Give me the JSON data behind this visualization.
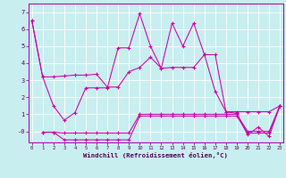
{
  "background_color": "#c8eef0",
  "grid_color": "#ffffff",
  "line_color": "#cc00aa",
  "xlim": [
    -0.3,
    23.3
  ],
  "ylim": [
    -0.65,
    7.5
  ],
  "ytick_vals": [
    0,
    1,
    2,
    3,
    4,
    5,
    6,
    7
  ],
  "ytick_labels": [
    "-0",
    "1",
    "2",
    "3",
    "4",
    "5",
    "6",
    "7"
  ],
  "xtick_vals": [
    0,
    1,
    2,
    3,
    4,
    5,
    6,
    7,
    8,
    9,
    10,
    11,
    12,
    13,
    14,
    15,
    16,
    17,
    18,
    19,
    20,
    21,
    22,
    23
  ],
  "xlabel": "Windchill (Refroidissement éolien,°C)",
  "series": [
    {
      "x": [
        0,
        1,
        2,
        3,
        4,
        5,
        6,
        7,
        8,
        9,
        10,
        11,
        12,
        13,
        14,
        15,
        16,
        17,
        18,
        19,
        20,
        21,
        22,
        23
      ],
      "y": [
        6.5,
        3.2,
        3.2,
        3.25,
        3.3,
        3.3,
        3.35,
        2.6,
        2.6,
        3.5,
        3.75,
        4.35,
        3.7,
        3.75,
        3.75,
        3.75,
        4.5,
        4.5,
        1.15,
        1.15,
        1.15,
        1.15,
        1.15,
        1.5
      ]
    },
    {
      "x": [
        0,
        1,
        2,
        3,
        4,
        5,
        6,
        7,
        8,
        9,
        10,
        11,
        12,
        13,
        14,
        15,
        16,
        17,
        18,
        19,
        20,
        21,
        22,
        23
      ],
      "y": [
        6.5,
        3.2,
        1.5,
        0.65,
        1.1,
        2.55,
        2.55,
        2.55,
        4.9,
        4.9,
        6.9,
        5.0,
        3.7,
        6.35,
        5.0,
        6.35,
        4.5,
        2.35,
        1.15,
        1.05,
        -0.2,
        0.25,
        -0.3,
        1.5
      ]
    },
    {
      "x": [
        1,
        2,
        3,
        4,
        5,
        6,
        7,
        8,
        9,
        10,
        11,
        12,
        13,
        14,
        15,
        16,
        17,
        18,
        19,
        20,
        21,
        22,
        23
      ],
      "y": [
        -0.05,
        -0.05,
        -0.5,
        -0.5,
        -0.5,
        -0.5,
        -0.5,
        -0.5,
        -0.5,
        0.9,
        0.9,
        0.9,
        0.9,
        0.9,
        0.9,
        0.9,
        0.9,
        0.9,
        0.9,
        -0.1,
        -0.1,
        -0.1,
        1.5
      ]
    },
    {
      "x": [
        1,
        2,
        3,
        4,
        5,
        6,
        7,
        8,
        9,
        10,
        11,
        12,
        13,
        14,
        15,
        16,
        17,
        18,
        19,
        20,
        21,
        22,
        23
      ],
      "y": [
        -0.05,
        -0.05,
        -0.1,
        -0.1,
        -0.1,
        -0.1,
        -0.1,
        -0.1,
        -0.1,
        1.0,
        1.0,
        1.0,
        1.0,
        1.0,
        1.0,
        1.0,
        1.0,
        1.0,
        1.0,
        0.0,
        0.0,
        0.0,
        1.5
      ]
    }
  ]
}
